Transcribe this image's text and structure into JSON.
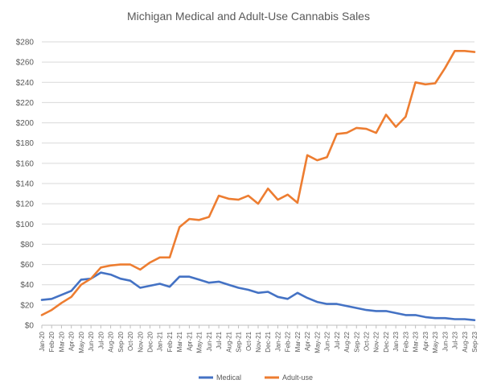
{
  "chart_data": {
    "type": "line",
    "title": "Michigan Medical and Adult-Use Cannabis Sales",
    "xlabel": "",
    "ylabel": "",
    "ylim": [
      0,
      280
    ],
    "ytick_labels": [
      "$0",
      "$20",
      "$40",
      "$60",
      "$80",
      "$100",
      "$120",
      "$140",
      "$160",
      "$180",
      "$200",
      "$220",
      "$240",
      "$260",
      "$280"
    ],
    "grid": "horizontal",
    "legend_position": "bottom",
    "categories": [
      "Jan-20",
      "Feb-20",
      "Mar-20",
      "Apr-20",
      "May-20",
      "Jun-20",
      "Jul-20",
      "Aug-20",
      "Sep-20",
      "Oct-20",
      "Nov-20",
      "Dec-20",
      "Jan-21",
      "Feb-21",
      "Mar-21",
      "Apr-21",
      "May-21",
      "Jun-21",
      "Jul-21",
      "Aug-21",
      "Sep-21",
      "Oct-21",
      "Nov-21",
      "Dec-21",
      "Jan-22",
      "Feb-22",
      "Mar-22",
      "Apr-22",
      "May-22",
      "Jun-22",
      "Jul-22",
      "Aug-22",
      "Sep-22",
      "Oct-22",
      "Nov-22",
      "Dec-22",
      "Jan-23",
      "Feb-23",
      "Mar-23",
      "Apr-23",
      "May-23",
      "Jun-23",
      "Jul-23",
      "Aug-23",
      "Sep-23"
    ],
    "series": [
      {
        "name": "Medical",
        "color": "#4472c4",
        "values": [
          25,
          26,
          30,
          34,
          45,
          46,
          52,
          50,
          46,
          44,
          37,
          39,
          41,
          38,
          48,
          48,
          45,
          42,
          43,
          40,
          37,
          35,
          32,
          33,
          28,
          26,
          32,
          27,
          23,
          21,
          21,
          19,
          17,
          15,
          14,
          14,
          12,
          10,
          10,
          8,
          7,
          7,
          6,
          6,
          5
        ]
      },
      {
        "name": "Adult-use",
        "color": "#ed7d31",
        "values": [
          10,
          15,
          22,
          28,
          40,
          46,
          57,
          59,
          60,
          60,
          55,
          62,
          67,
          67,
          97,
          105,
          104,
          107,
          128,
          125,
          124,
          128,
          120,
          135,
          124,
          129,
          121,
          168,
          163,
          166,
          189,
          190,
          195,
          194,
          190,
          208,
          196,
          206,
          240,
          238,
          239,
          254,
          271,
          271,
          270
        ]
      }
    ]
  }
}
